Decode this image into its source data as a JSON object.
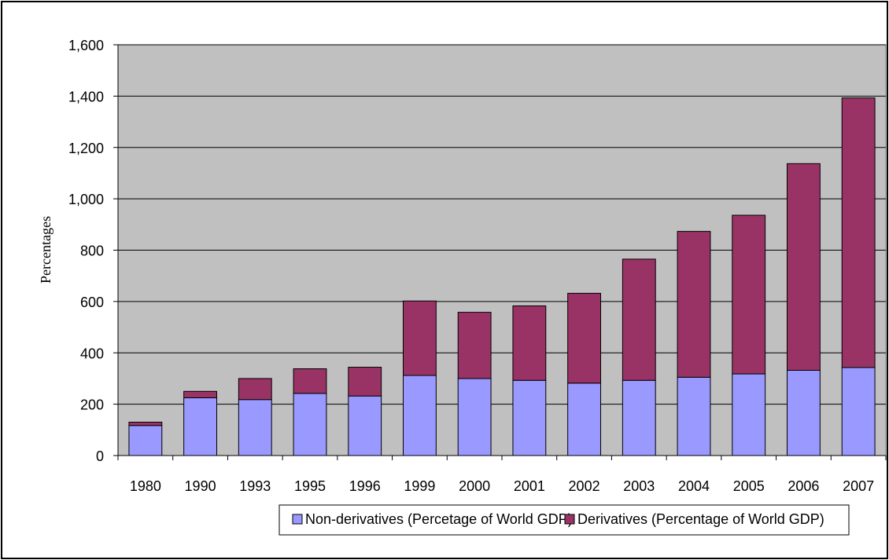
{
  "chart_data": {
    "type": "bar",
    "stacked": true,
    "ylabel": "Percentages",
    "xlabel": "",
    "ylim": [
      0,
      1600
    ],
    "yticks": [
      0,
      200,
      400,
      600,
      800,
      1000,
      1200,
      1400,
      1600
    ],
    "ytick_labels": [
      "0",
      "200",
      "400",
      "600",
      "800",
      "1,000",
      "1,200",
      "1,400",
      "1,600"
    ],
    "categories": [
      "1980",
      "1990",
      "1993",
      "1995",
      "1996",
      "1999",
      "2000",
      "2001",
      "2002",
      "2003",
      "2004",
      "2005",
      "2006",
      "2007"
    ],
    "series": [
      {
        "name": "Non-derivatives (Percetage of World GDP)",
        "color": "#9999ff",
        "values": [
          117,
          225,
          218,
          242,
          232,
          312,
          300,
          293,
          282,
          293,
          305,
          318,
          332,
          343
        ]
      },
      {
        "name": "Derivatives (Percentage of World GDP)",
        "color": "#993366",
        "values": [
          13,
          25,
          82,
          96,
          112,
          290,
          258,
          290,
          350,
          472,
          568,
          618,
          805,
          1050
        ]
      }
    ],
    "grid": true,
    "plot_background": "#c0c0c0",
    "legend_position": "bottom"
  }
}
